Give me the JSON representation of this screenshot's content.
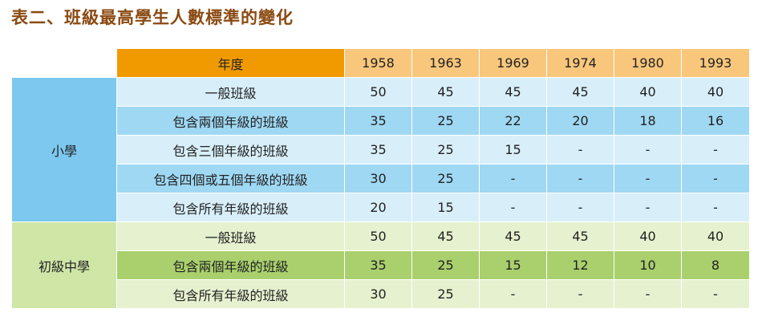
{
  "title": "表二、班級最高學生人數標準的變化",
  "header": {
    "label": "年度",
    "years": [
      "1958",
      "1963",
      "1969",
      "1974",
      "1980",
      "1993"
    ]
  },
  "groups": [
    {
      "name": "小學",
      "rows": [
        {
          "label": "一般班級",
          "values": [
            "50",
            "45",
            "45",
            "45",
            "40",
            "40"
          ]
        },
        {
          "label": "包含兩個年級的班級",
          "values": [
            "35",
            "25",
            "22",
            "20",
            "18",
            "16"
          ]
        },
        {
          "label": "包含三個年級的班級",
          "values": [
            "35",
            "25",
            "15",
            "-",
            "-",
            "-"
          ]
        },
        {
          "label": "包含四個或五個年級的班級",
          "values": [
            "30",
            "25",
            "-",
            "-",
            "-",
            "-"
          ]
        },
        {
          "label": "包含所有年級的班級",
          "values": [
            "20",
            "15",
            "-",
            "-",
            "-",
            "-"
          ]
        }
      ]
    },
    {
      "name": "初級中學",
      "rows": [
        {
          "label": "一般班級",
          "values": [
            "50",
            "45",
            "45",
            "45",
            "40",
            "40"
          ]
        },
        {
          "label": "包含兩個年級的班級",
          "values": [
            "35",
            "25",
            "15",
            "12",
            "10",
            "8"
          ]
        },
        {
          "label": "包含所有年級的班級",
          "values": [
            "30",
            "25",
            "-",
            "-",
            "-",
            "-"
          ]
        }
      ]
    }
  ],
  "colors": {
    "title": "#8a4a12",
    "header_label_bg": "#f09a00",
    "header_year_bg": "#f9c77c",
    "primary_group_bg": "#7dc8ef",
    "primary_light_row": "#d8effa",
    "primary_dark_row": "#9fd8f3",
    "middle_group_bg": "#cfe6a7",
    "middle_light_row": "#e6f1cf",
    "middle_dark_row": "#a9d06d"
  }
}
